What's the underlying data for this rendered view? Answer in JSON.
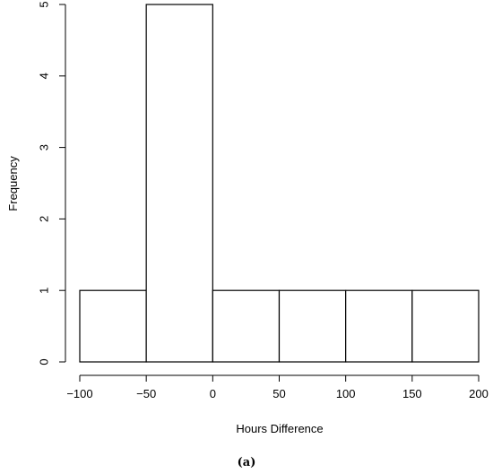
{
  "chart_data": {
    "type": "bar",
    "bins": [
      {
        "from": -100,
        "to": -50,
        "count": 1
      },
      {
        "from": -50,
        "to": 0,
        "count": 5
      },
      {
        "from": 0,
        "to": 50,
        "count": 1
      },
      {
        "from": 50,
        "to": 100,
        "count": 1
      },
      {
        "from": 100,
        "to": 150,
        "count": 1
      },
      {
        "from": 150,
        "to": 200,
        "count": 1
      }
    ],
    "xlabel": "Hours Difference",
    "ylabel": "Frequency",
    "xlim": [
      -100,
      200
    ],
    "ylim": [
      0,
      5
    ],
    "x_ticks": [
      "−100",
      "−50",
      "0",
      "50",
      "100",
      "150",
      "200"
    ],
    "x_tick_values": [
      -100,
      -50,
      0,
      50,
      100,
      150,
      200
    ],
    "y_ticks": [
      "0",
      "1",
      "2",
      "3",
      "4",
      "5"
    ],
    "y_tick_values": [
      0,
      1,
      2,
      3,
      4,
      5
    ],
    "grid": false,
    "legend": "none"
  },
  "caption": "(a)"
}
